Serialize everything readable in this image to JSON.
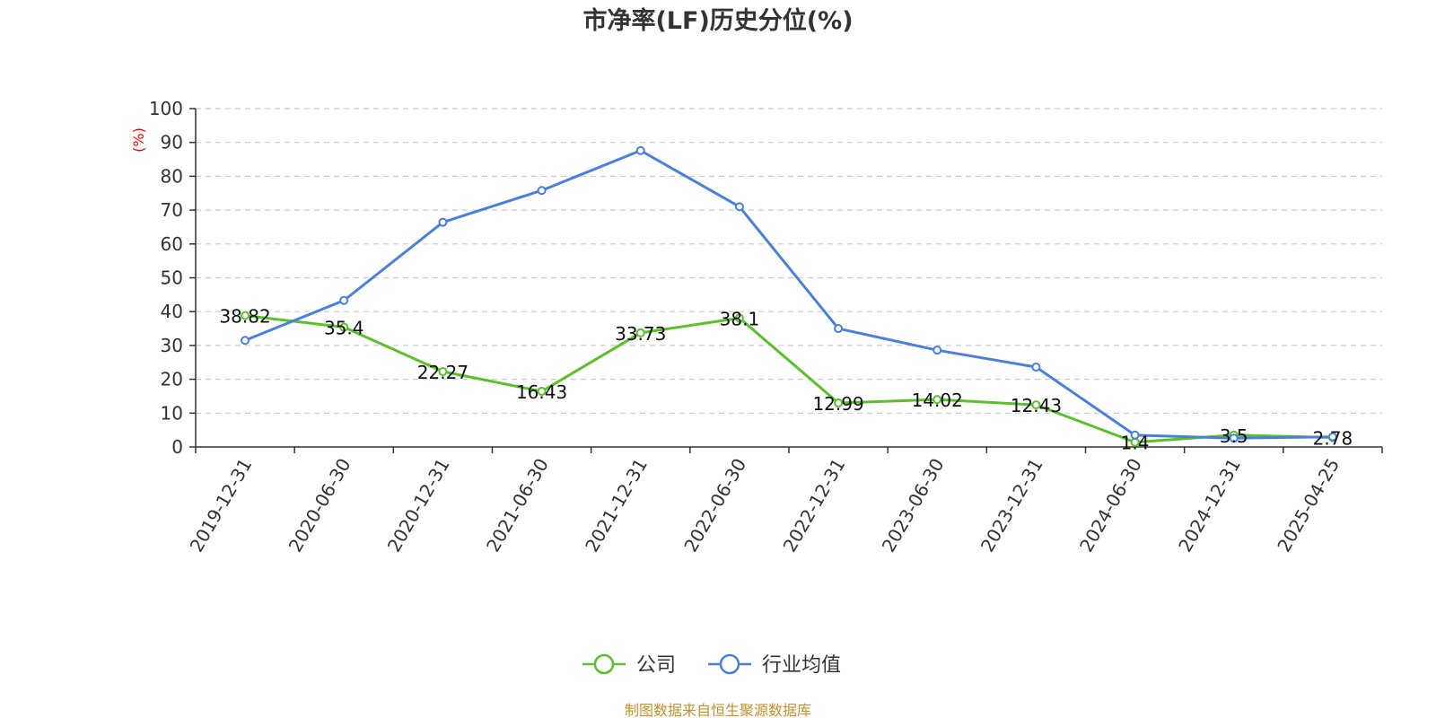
{
  "chart_data": {
    "type": "line",
    "title": "市净率(LF)历史分位(%)",
    "ylabel": "(%)",
    "ylim": [
      0,
      100
    ],
    "yticks": [
      0,
      10,
      20,
      30,
      40,
      50,
      60,
      70,
      80,
      90,
      100
    ],
    "grid": true,
    "legend_position": "bottom-center",
    "categories": [
      "2019-12-31",
      "2020-06-30",
      "2020-12-31",
      "2021-06-30",
      "2021-12-31",
      "2022-06-30",
      "2022-12-31",
      "2023-06-30",
      "2023-12-31",
      "2024-06-30",
      "2024-12-31",
      "2025-04-25"
    ],
    "series": [
      {
        "name": "公司",
        "color": "#5ac12a",
        "values": [
          38.82,
          35.4,
          22.27,
          16.43,
          33.73,
          38.1,
          12.99,
          14.02,
          12.43,
          1.4,
          3.5,
          2.78
        ],
        "labels": [
          "38.82",
          "35.4",
          "22.27",
          "16.43",
          "33.73",
          "38.1",
          "12.99",
          "14.02",
          "12.43",
          "1.4",
          "3.5",
          "2.78"
        ]
      },
      {
        "name": "行业均值",
        "color": "#4a7fde",
        "values": [
          31.5,
          43.3,
          66.4,
          75.8,
          87.6,
          71.0,
          35.0,
          28.6,
          23.6,
          3.5,
          2.6,
          3.0
        ]
      }
    ]
  },
  "source_text": "制图数据来自恒生聚源数据库"
}
